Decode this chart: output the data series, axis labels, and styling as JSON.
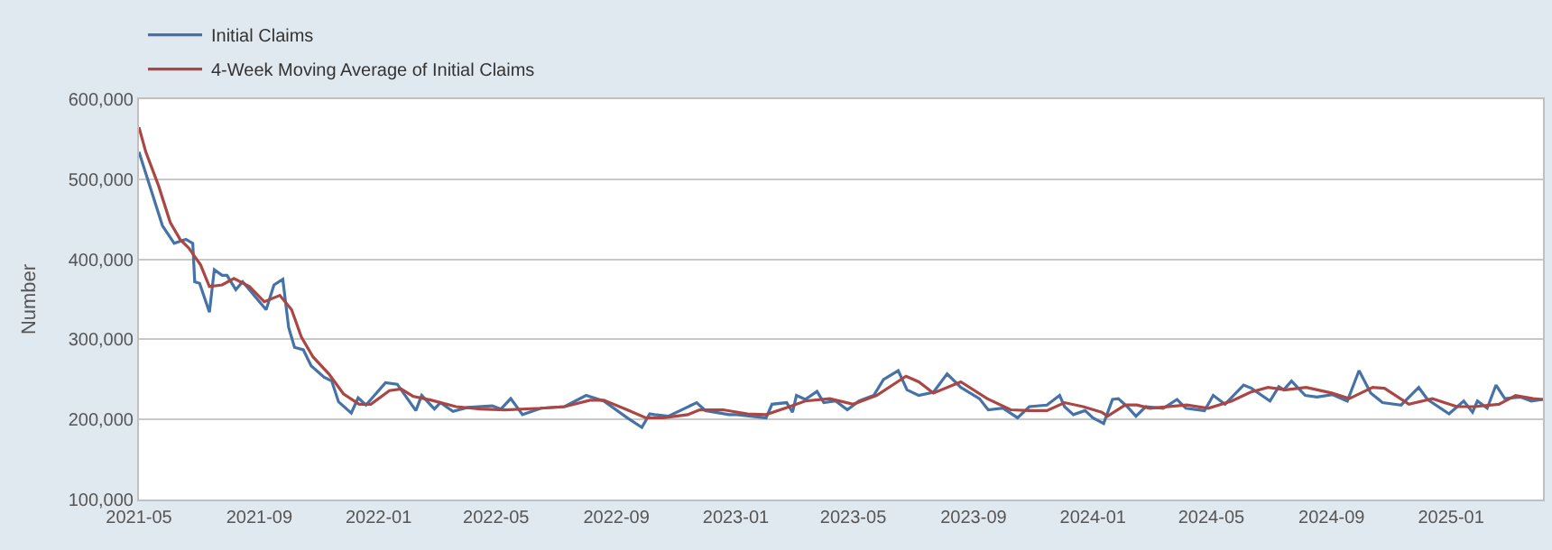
{
  "chart_data": {
    "type": "line",
    "ylabel": "Number",
    "legend": "top left",
    "grid": "y",
    "marker": "none",
    "line_style": "solid",
    "xlim": [
      "2021-05-01",
      "2025-04-05"
    ],
    "xticks": [
      {
        "value": "2021-05-01",
        "label": "2021-05"
      },
      {
        "value": "2021-09-01",
        "label": "2021-09"
      },
      {
        "value": "2022-01-01",
        "label": "2022-01"
      },
      {
        "value": "2022-05-01",
        "label": "2022-05"
      },
      {
        "value": "2022-09-01",
        "label": "2022-09"
      },
      {
        "value": "2023-01-01",
        "label": "2023-01"
      },
      {
        "value": "2023-05-01",
        "label": "2023-05"
      },
      {
        "value": "2023-09-01",
        "label": "2023-09"
      },
      {
        "value": "2024-01-01",
        "label": "2024-01"
      },
      {
        "value": "2024-05-01",
        "label": "2024-05"
      },
      {
        "value": "2024-09-01",
        "label": "2024-09"
      },
      {
        "value": "2025-01-01",
        "label": "2025-01"
      }
    ],
    "ylim": [
      100000,
      600000
    ],
    "yticks": [
      {
        "value": 100000,
        "label": "100,000"
      },
      {
        "value": 200000,
        "label": "200,000"
      },
      {
        "value": 300000,
        "label": "300,000"
      },
      {
        "value": 400000,
        "label": "400,000"
      },
      {
        "value": 500000,
        "label": "500,000"
      },
      {
        "value": 600000,
        "label": "600,000"
      }
    ],
    "series": [
      {
        "name": "Initial Claims",
        "color": "#4572a7",
        "x": [
          "2021-05-01",
          "2021-05-25",
          "2021-06-06",
          "2021-06-18",
          "2021-06-25",
          "2021-06-27",
          "2021-07-02",
          "2021-07-12",
          "2021-07-17",
          "2021-07-25",
          "2021-07-30",
          "2021-08-08",
          "2021-08-15",
          "2021-09-08",
          "2021-09-16",
          "2021-09-25",
          "2021-10-01",
          "2021-10-07",
          "2021-10-16",
          "2021-10-24",
          "2021-11-06",
          "2021-11-14",
          "2021-11-21",
          "2021-12-04",
          "2021-12-11",
          "2021-12-19",
          "2022-01-08",
          "2022-01-20",
          "2022-02-08",
          "2022-02-14",
          "2022-02-27",
          "2022-03-05",
          "2022-03-18",
          "2022-04-02",
          "2022-04-27",
          "2022-05-06",
          "2022-05-16",
          "2022-05-28",
          "2022-06-16",
          "2022-07-10",
          "2022-08-01",
          "2022-08-19",
          "2022-09-12",
          "2022-09-27",
          "2022-10-05",
          "2022-10-10",
          "2022-10-24",
          "2022-11-22",
          "2022-12-01",
          "2022-12-25",
          "2023-01-02",
          "2023-02-01",
          "2023-02-07",
          "2023-02-22",
          "2023-02-28",
          "2023-03-04",
          "2023-03-13",
          "2023-03-25",
          "2023-04-01",
          "2023-04-13",
          "2023-04-25",
          "2023-05-07",
          "2023-05-22",
          "2023-06-01",
          "2023-06-16",
          "2023-06-25",
          "2023-07-07",
          "2023-07-22",
          "2023-08-05",
          "2023-08-19",
          "2023-09-07",
          "2023-09-16",
          "2023-10-01",
          "2023-10-16",
          "2023-10-28",
          "2023-11-15",
          "2023-11-28",
          "2023-12-03",
          "2023-12-12",
          "2023-12-24",
          "2024-01-01",
          "2024-01-12",
          "2024-01-21",
          "2024-01-27",
          "2024-02-05",
          "2024-02-14",
          "2024-02-24",
          "2024-03-13",
          "2024-03-27",
          "2024-04-05",
          "2024-04-24",
          "2024-05-03",
          "2024-05-15",
          "2024-06-03",
          "2024-06-11",
          "2024-06-30",
          "2024-07-09",
          "2024-07-14",
          "2024-07-22",
          "2024-08-05",
          "2024-08-17",
          "2024-09-02",
          "2024-09-17",
          "2024-09-29",
          "2024-10-11",
          "2024-10-23",
          "2024-11-11",
          "2024-11-29",
          "2024-12-08",
          "2024-12-30",
          "2025-01-14",
          "2025-01-23",
          "2025-01-28",
          "2025-02-07",
          "2025-02-16",
          "2025-02-25",
          "2025-03-13",
          "2025-03-24",
          "2025-04-05"
        ],
        "values": [
          534000,
          442000,
          420000,
          425000,
          420000,
          372000,
          370000,
          334000,
          387000,
          380000,
          380000,
          362000,
          372000,
          337000,
          368000,
          375000,
          315000,
          290000,
          287000,
          267000,
          253000,
          248000,
          222000,
          208000,
          227000,
          218000,
          246000,
          244000,
          211000,
          230000,
          213000,
          221000,
          210000,
          215000,
          217000,
          213000,
          226000,
          206000,
          214000,
          216000,
          230000,
          223000,
          202000,
          190000,
          207000,
          206000,
          204000,
          221000,
          211000,
          206000,
          206000,
          202000,
          219000,
          221000,
          209000,
          230000,
          225000,
          235000,
          221000,
          223000,
          212000,
          223000,
          230000,
          250000,
          261000,
          237000,
          230000,
          234000,
          257000,
          240000,
          226000,
          212000,
          214000,
          202000,
          216000,
          218000,
          230000,
          216000,
          206000,
          211000,
          202000,
          195000,
          225000,
          226000,
          216000,
          204000,
          216000,
          214000,
          225000,
          214000,
          211000,
          230000,
          219000,
          243000,
          239000,
          223000,
          241000,
          237000,
          248000,
          230000,
          228000,
          231000,
          223000,
          261000,
          233000,
          221000,
          218000,
          240000,
          225000,
          207000,
          223000,
          209000,
          223000,
          214000,
          243000,
          226000,
          228000,
          223000,
          225000
        ]
      },
      {
        "name": "4-Week Moving Average of Initial Claims",
        "color": "#aa4643",
        "x": [
          "2021-05-01",
          "2021-05-08",
          "2021-05-21",
          "2021-06-02",
          "2021-06-12",
          "2021-06-21",
          "2021-07-03",
          "2021-07-12",
          "2021-07-25",
          "2021-08-06",
          "2021-08-22",
          "2021-09-06",
          "2021-09-22",
          "2021-10-04",
          "2021-10-14",
          "2021-10-26",
          "2021-11-11",
          "2021-11-26",
          "2021-12-12",
          "2021-12-24",
          "2022-01-12",
          "2022-01-24",
          "2022-02-05",
          "2022-02-24",
          "2022-03-21",
          "2022-04-15",
          "2022-05-10",
          "2022-06-16",
          "2022-07-10",
          "2022-08-05",
          "2022-08-19",
          "2022-09-12",
          "2022-10-01",
          "2022-10-19",
          "2022-11-13",
          "2022-11-25",
          "2022-12-19",
          "2023-01-13",
          "2023-02-01",
          "2023-02-25",
          "2023-03-13",
          "2023-04-07",
          "2023-05-01",
          "2023-05-25",
          "2023-06-24",
          "2023-07-07",
          "2023-07-22",
          "2023-08-19",
          "2023-09-15",
          "2023-10-09",
          "2023-10-28",
          "2023-11-15",
          "2023-12-03",
          "2023-12-22",
          "2024-01-10",
          "2024-01-16",
          "2024-02-03",
          "2024-02-15",
          "2024-02-28",
          "2024-04-06",
          "2024-04-28",
          "2024-05-22",
          "2024-06-10",
          "2024-06-28",
          "2024-07-16",
          "2024-08-06",
          "2024-09-01",
          "2024-09-19",
          "2024-10-13",
          "2024-10-25",
          "2024-11-19",
          "2024-12-13",
          "2025-01-07",
          "2025-01-25",
          "2025-02-19",
          "2025-03-08",
          "2025-03-26",
          "2025-04-05"
        ],
        "values": [
          565000,
          534000,
          492000,
          446000,
          425000,
          414000,
          393000,
          366000,
          368000,
          376000,
          366000,
          347000,
          355000,
          337000,
          303000,
          278000,
          257000,
          232000,
          219000,
          219000,
          236000,
          238000,
          229000,
          224000,
          216000,
          213000,
          212000,
          214000,
          216000,
          224000,
          224000,
          212000,
          202000,
          202000,
          206000,
          212000,
          212000,
          207000,
          206000,
          216000,
          223000,
          226000,
          219000,
          230000,
          254000,
          247000,
          233000,
          247000,
          226000,
          212000,
          211000,
          211000,
          221000,
          216000,
          209000,
          204000,
          218000,
          218000,
          214000,
          218000,
          214000,
          223000,
          234000,
          240000,
          237000,
          240000,
          233000,
          226000,
          240000,
          239000,
          219000,
          226000,
          216000,
          216000,
          219000,
          230000,
          226000,
          225000
        ]
      }
    ]
  }
}
